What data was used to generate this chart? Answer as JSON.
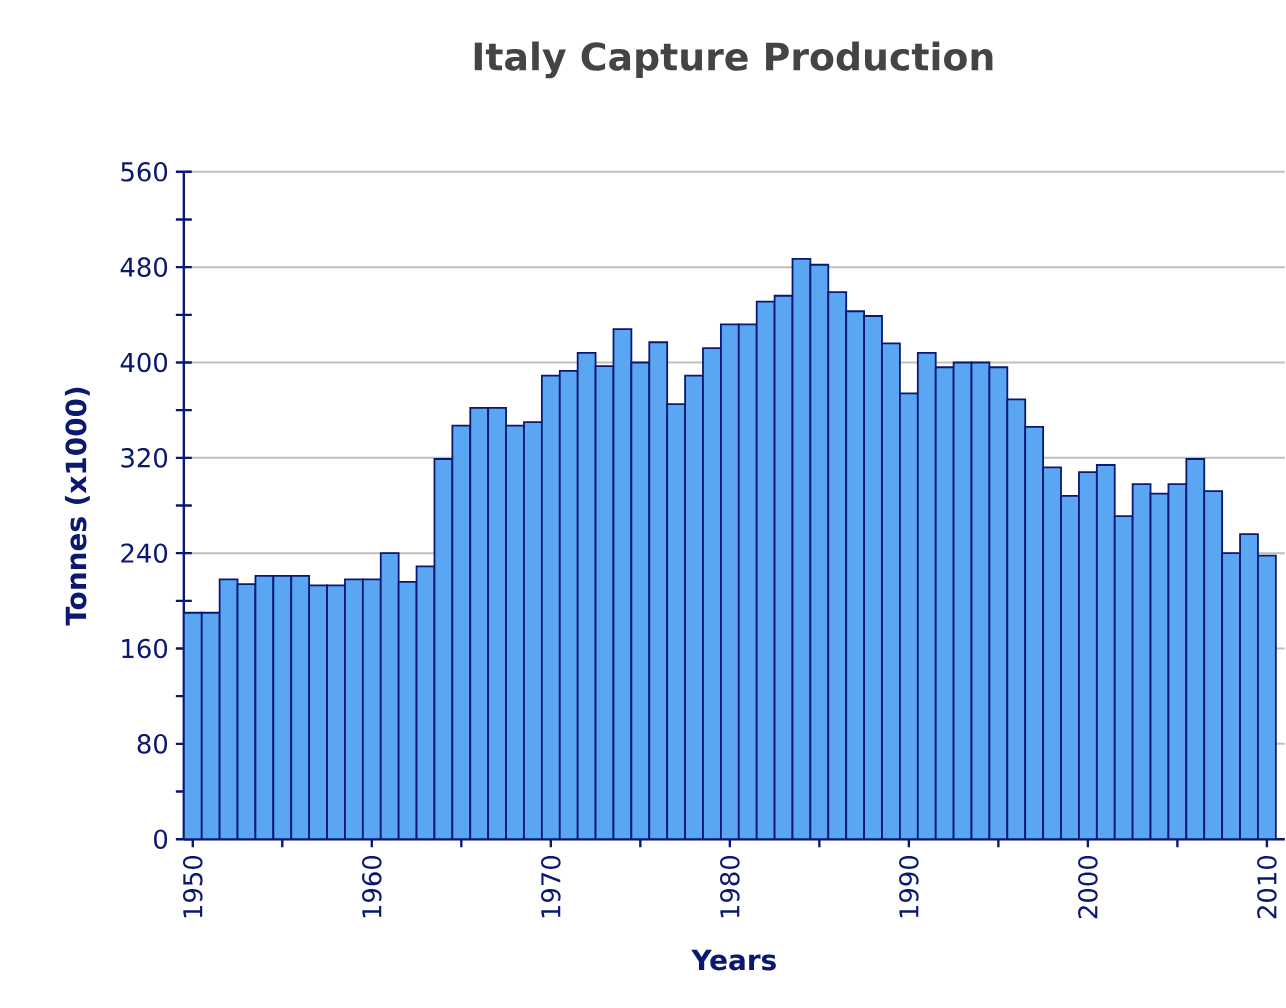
{
  "chart_data": {
    "type": "bar",
    "title": "Italy Capture Production",
    "xlabel": "Years",
    "ylabel": "Tonnes (x1000)",
    "color": "#5aa6f2",
    "x": [
      1950,
      1951,
      1952,
      1953,
      1954,
      1955,
      1956,
      1957,
      1958,
      1959,
      1960,
      1961,
      1962,
      1963,
      1964,
      1965,
      1966,
      1967,
      1968,
      1969,
      1970,
      1971,
      1972,
      1973,
      1974,
      1975,
      1976,
      1977,
      1978,
      1979,
      1980,
      1981,
      1982,
      1983,
      1984,
      1985,
      1986,
      1987,
      1988,
      1989,
      1990,
      1991,
      1992,
      1993,
      1994,
      1995,
      1996,
      1997,
      1998,
      1999,
      2000,
      2001,
      2002,
      2003,
      2004,
      2005,
      2006,
      2007,
      2008,
      2009,
      2010
    ],
    "values": [
      190,
      190,
      218,
      214,
      221,
      221,
      221,
      213,
      213,
      218,
      218,
      240,
      216,
      229,
      319,
      347,
      362,
      362,
      347,
      350,
      389,
      393,
      408,
      397,
      428,
      400,
      417,
      365,
      389,
      412,
      432,
      432,
      451,
      456,
      487,
      482,
      459,
      443,
      439,
      416,
      374,
      408,
      396,
      400,
      400,
      396,
      369,
      346,
      312,
      288,
      308,
      314,
      271,
      298,
      290,
      298,
      319,
      292,
      240,
      256,
      238
    ],
    "xlim": [
      1949.5,
      2011
    ],
    "ylim": [
      0,
      560
    ],
    "xticks": [
      1950,
      {
        "value": 1955,
        "label": null
      },
      1960,
      {
        "value": 1965,
        "label": null
      },
      1970,
      {
        "value": 1975,
        "label": null
      },
      1980,
      {
        "value": 1985,
        "label": null
      },
      1990,
      {
        "value": 1995,
        "label": null
      },
      2000,
      {
        "value": 2005,
        "label": null
      },
      2010
    ],
    "yticks": [
      0,
      {
        "value": 40,
        "label": null
      },
      80,
      {
        "value": 120,
        "label": null
      },
      160,
      {
        "value": 200,
        "label": null
      },
      240,
      {
        "value": 280,
        "label": null
      },
      320,
      {
        "value": 360,
        "label": null
      },
      400,
      {
        "value": 440,
        "label": null
      },
      480,
      {
        "value": 520,
        "label": null
      },
      560
    ],
    "grid": "y"
  }
}
